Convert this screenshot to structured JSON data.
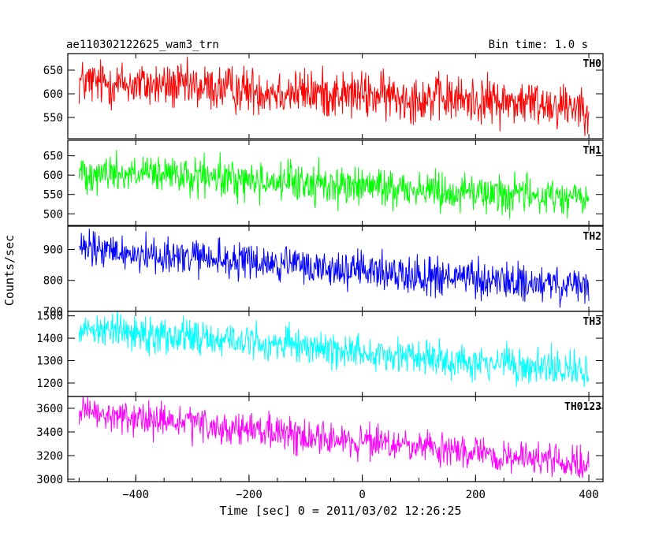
{
  "chart_data": {
    "type": "line",
    "title": "ae110302122625_wam3_trn",
    "subtitle": "Bin time: 1.0 s",
    "xlabel": "Time [sec] 0 = 2011/03/02 12:26:25",
    "ylabel": "Counts/sec",
    "xlim": [
      -520,
      425
    ],
    "x_ticks": [
      -400,
      -200,
      0,
      200,
      400
    ],
    "x_tick_labels": [
      "−400",
      "−200",
      "0",
      "200",
      "400"
    ],
    "x_range": [
      -500,
      400
    ],
    "grid": false,
    "panels": [
      {
        "name": "TH0",
        "color": "#ff0000",
        "ylim": [
          505,
          685
        ],
        "y_ticks": [
          550,
          600,
          650
        ],
        "y_tick_labels": [
          "550",
          "600",
          "650"
        ],
        "trend_start": 625,
        "trend_end": 575,
        "noise_amplitude": 25
      },
      {
        "name": "TH1",
        "color": "#00ff00",
        "ylim": [
          470,
          690
        ],
        "y_ticks": [
          500,
          550,
          600,
          650
        ],
        "y_tick_labels": [
          "500",
          "550",
          "600",
          "650"
        ],
        "trend_start": 610,
        "trend_end": 540,
        "noise_amplitude": 25
      },
      {
        "name": "TH2",
        "color": "#0000ff",
        "ylim": [
          700,
          975
        ],
        "y_ticks": [
          700,
          800,
          900
        ],
        "y_tick_labels": [
          "700",
          "800",
          "900"
        ],
        "trend_start": 900,
        "trend_end": 775,
        "noise_amplitude": 30
      },
      {
        "name": "TH3",
        "color": "#00ffff",
        "ylim": [
          1140,
          1520
        ],
        "y_ticks": [
          1200,
          1300,
          1400,
          1500
        ],
        "y_tick_labels": [
          "1200",
          "1300",
          "1400",
          "1500"
        ],
        "trend_start": 1450,
        "trend_end": 1250,
        "noise_amplitude": 40
      },
      {
        "name": "TH0123",
        "color": "#ff00ff",
        "ylim": [
          2980,
          3700
        ],
        "y_ticks": [
          3000,
          3200,
          3400,
          3600
        ],
        "y_tick_labels": [
          "3000",
          "3200",
          "3400",
          "3600"
        ],
        "trend_start": 3560,
        "trend_end": 3120,
        "noise_amplitude": 70
      }
    ]
  }
}
